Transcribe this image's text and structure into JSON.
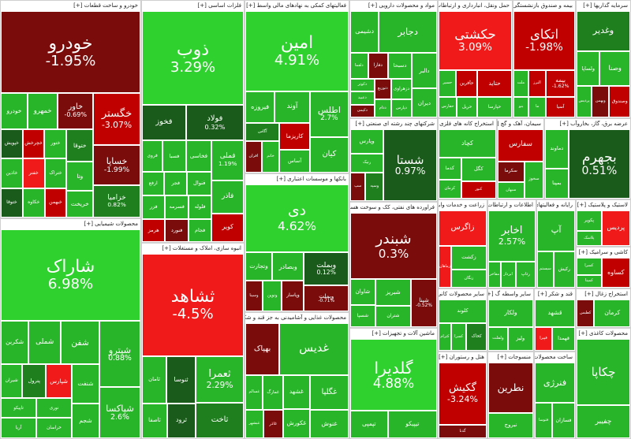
{
  "colors": {
    "strong_up": "#2fd12f",
    "up": "#29b529",
    "mild_up": "#1f7f1f",
    "neutral": "#1a5a1a",
    "mild_down": "#7a0c0c",
    "down": "#c00000",
    "strong_down": "#f11a1a",
    "light_green": "#4ce44c"
  },
  "sections": [
    {
      "id": "auto",
      "title": "خودرو و ساخت قطعات [+]",
      "tiles": [
        {
          "n": "خودرو",
          "p": "-1.95%",
          "c": "mild_down"
        },
        {
          "n": "خگستر",
          "p": "-3.07%",
          "c": "down"
        },
        {
          "n": "خساپا",
          "p": "-1.99%",
          "c": "mild_down"
        },
        {
          "n": "خزامیا",
          "p": "0.82%",
          "c": "mild_up"
        },
        {
          "n": "خاور",
          "p": "-0.69%",
          "c": "mild_down"
        },
        {
          "n": "خمهرو",
          "p": "",
          "c": "up"
        },
        {
          "n": "خودرو",
          "p": "",
          "c": "up"
        },
        {
          "n": "ختوقا",
          "p": "",
          "c": "mild_up"
        },
        {
          "n": "وتا",
          "p": "",
          "c": "up"
        },
        {
          "n": "خریخت",
          "p": "",
          "c": "up"
        },
        {
          "n": "ختور",
          "p": "",
          "c": "up"
        },
        {
          "n": "خچرخش",
          "p": "",
          "c": "down"
        },
        {
          "n": "خپویش",
          "p": "",
          "c": "neutral"
        },
        {
          "n": "ختراک",
          "p": "",
          "c": "up"
        },
        {
          "n": "خبهمن",
          "p": "",
          "c": "down"
        },
        {
          "n": "خفنر",
          "p": "",
          "c": "strong_down"
        },
        {
          "n": "خاذین",
          "p": "",
          "c": "up"
        },
        {
          "n": "خکاوه",
          "p": "",
          "c": "up"
        },
        {
          "n": "ختوقا",
          "p": "",
          "c": "neutral"
        }
      ]
    },
    {
      "id": "metal",
      "title": "فلزات اساسی [+]",
      "tiles": [
        {
          "n": "ذوب",
          "p": "3.29%",
          "c": "strong_up"
        },
        {
          "n": "فولاد",
          "p": "0.32%",
          "c": "neutral"
        },
        {
          "n": "فخوز",
          "p": "",
          "c": "neutral"
        },
        {
          "n": "فملی",
          "p": "1.19%",
          "c": "up"
        },
        {
          "n": "فاذر",
          "p": "",
          "c": "up"
        },
        {
          "n": "کویر",
          "p": "",
          "c": "down"
        },
        {
          "n": "فخاسی",
          "p": "",
          "c": "up"
        },
        {
          "n": "فسبا",
          "p": "",
          "c": "up"
        },
        {
          "n": "فروی",
          "p": "",
          "c": "up"
        },
        {
          "n": "فنوال",
          "p": "",
          "c": "up"
        },
        {
          "n": "فجر",
          "p": "",
          "c": "up"
        },
        {
          "n": "ارفع",
          "p": "",
          "c": "up"
        },
        {
          "n": "فلوله",
          "p": "",
          "c": "up"
        },
        {
          "n": "فجام",
          "p": "",
          "c": "up"
        },
        {
          "n": "فسرمه",
          "p": "",
          "c": "up"
        },
        {
          "n": "فنورد",
          "p": "",
          "c": "mild_down"
        },
        {
          "n": "فزر",
          "p": "",
          "c": "up"
        },
        {
          "n": "هرمز",
          "p": "",
          "c": "down"
        }
      ]
    },
    {
      "id": "finance",
      "title": "فعالیتهای کمکی به نهادهای مالی واسط [+]",
      "tiles": [
        {
          "n": "امین",
          "p": "4.91%",
          "c": "strong_up"
        },
        {
          "n": "اطلس",
          "p": "2.7%",
          "c": "up"
        },
        {
          "n": "کیان",
          "p": "",
          "c": "up"
        },
        {
          "n": "آوند",
          "p": "",
          "c": "up"
        },
        {
          "n": "فیروزه",
          "p": "",
          "c": "up"
        },
        {
          "n": "کاریزما",
          "p": "",
          "c": "down"
        },
        {
          "n": "آساس",
          "p": "",
          "c": "up"
        },
        {
          "n": "آگاس",
          "p": "",
          "c": "mild_up"
        },
        {
          "n": "خاتم",
          "p": "",
          "c": "up"
        },
        {
          "n": "افران",
          "p": "",
          "c": "mild_down"
        }
      ]
    },
    {
      "id": "pharma",
      "title": "مواد و محصولات دارویی [+]",
      "tiles": [
        {
          "n": "دجابر",
          "p": "",
          "c": "up"
        },
        {
          "n": "دشیمی",
          "p": "",
          "c": "up"
        },
        {
          "n": "دالبر",
          "p": "",
          "c": "up"
        },
        {
          "n": "دیران",
          "p": "",
          "c": "up"
        },
        {
          "n": "دسبحا",
          "p": "",
          "c": "up"
        },
        {
          "n": "دفارا",
          "p": "",
          "c": "mild_down"
        },
        {
          "n": "دلقما",
          "p": "",
          "c": "up"
        },
        {
          "n": "دزهراوی",
          "p": "",
          "c": "up"
        },
        {
          "n": "دپارس",
          "p": "",
          "c": "up"
        },
        {
          "n": "دتوزیع",
          "p": "",
          "c": "mild_down"
        },
        {
          "n": "ددام",
          "p": "",
          "c": "up"
        },
        {
          "n": "دکوثر",
          "p": "",
          "c": "up"
        },
        {
          "n": "دعبید",
          "p": "",
          "c": "up"
        },
        {
          "n": "دکیمی",
          "p": "",
          "c": "mild_down"
        }
      ]
    },
    {
      "id": "telecom",
      "title": "حمل ونقل، انبارداری و ارتباطات [+]",
      "tiles": [
        {
          "n": "حکشتی",
          "p": "3.09%",
          "c": "strong_down"
        },
        {
          "n": "حتاید",
          "p": "",
          "c": "down"
        },
        {
          "n": "حپارسا",
          "p": "",
          "c": "up"
        },
        {
          "n": "حآفرین",
          "p": "",
          "c": "down"
        },
        {
          "n": "حسیر",
          "p": "",
          "c": "up"
        },
        {
          "n": "حریل",
          "p": "",
          "c": "up"
        },
        {
          "n": "حفارس",
          "p": "",
          "c": "up"
        }
      ]
    },
    {
      "id": "banks_a",
      "title": "بیمه و صندوق بازنشستگی به جز [+]",
      "tiles": [
        {
          "n": "اتکای",
          "p": "-1.98%",
          "c": "down"
        },
        {
          "n": "بیمه",
          "p": "-1.62%",
          "c": "down"
        },
        {
          "n": "آسیا",
          "p": "",
          "c": "down"
        },
        {
          "n": "البرز",
          "p": "",
          "c": "down"
        },
        {
          "n": "ملت",
          "p": "",
          "c": "up"
        },
        {
          "n": "ما",
          "p": "",
          "c": "up"
        },
        {
          "n": "بنو",
          "p": "",
          "c": "up"
        }
      ]
    },
    {
      "id": "invest",
      "title": "سرمایه گذاریها [+]",
      "tiles": [
        {
          "n": "وغدیر",
          "p": "",
          "c": "mild_up"
        },
        {
          "n": "وصنا",
          "p": "",
          "c": "up"
        },
        {
          "n": "ولساپا",
          "p": "",
          "c": "up"
        },
        {
          "n": "وصندوق",
          "p": "",
          "c": "down"
        },
        {
          "n": "وبهمن",
          "p": "",
          "c": "mild_down"
        },
        {
          "n": "پردیس",
          "p": "",
          "c": "up"
        }
      ]
    },
    {
      "id": "food",
      "title": "محصولات شیمیایی [+]",
      "tiles": [
        {
          "n": "شاراک",
          "p": "6.98%",
          "c": "strong_up"
        },
        {
          "n": "شپترو",
          "p": "0.88%",
          "c": "up"
        },
        {
          "n": "شپاکسا",
          "p": "2.6%",
          "c": "up"
        },
        {
          "n": "شفن",
          "p": "",
          "c": "up"
        },
        {
          "n": "شملی",
          "p": "",
          "c": "up"
        },
        {
          "n": "شکربن",
          "p": "",
          "c": "up"
        },
        {
          "n": "شنفت",
          "p": "",
          "c": "up"
        },
        {
          "n": "شجم",
          "p": "",
          "c": "up"
        },
        {
          "n": "شپارس",
          "p": "",
          "c": "strong_down"
        },
        {
          "n": "پترول",
          "p": "",
          "c": "mild_up"
        },
        {
          "n": "شیران",
          "p": "",
          "c": "up"
        },
        {
          "n": "نوری",
          "p": "",
          "c": "up"
        },
        {
          "n": "خراسان",
          "p": "",
          "c": "up"
        },
        {
          "n": "تاپیکو",
          "p": "",
          "c": "up"
        },
        {
          "n": "آریا",
          "p": "",
          "c": "up"
        }
      ]
    },
    {
      "id": "shahed",
      "title": "انبوه سازی، املاک و مستغلات [+]",
      "tiles": [
        {
          "n": "ثشاهد",
          "p": "-4.5%",
          "c": "strong_down"
        },
        {
          "n": "ثعمرا",
          "p": "2.29%",
          "c": "up"
        },
        {
          "n": "ثاخت",
          "p": "",
          "c": "mild_up"
        },
        {
          "n": "ثنوسا",
          "p": "",
          "c": "neutral"
        },
        {
          "n": "ثامان",
          "p": "",
          "c": "up"
        },
        {
          "n": "ثرود",
          "p": "",
          "c": "neutral"
        },
        {
          "n": "ثاصفا",
          "p": "",
          "c": "up"
        }
      ]
    },
    {
      "id": "banks",
      "title": "بانکها و موسسات اعتباری [+]",
      "tiles": [
        {
          "n": "دی",
          "p": "4.62%",
          "c": "strong_up"
        },
        {
          "n": "وبملت",
          "p": "0.12%",
          "c": "neutral"
        },
        {
          "n": "وبملت",
          "p": "-0.71%",
          "c": "mild_down"
        },
        {
          "n": "وبصادر",
          "p": "",
          "c": "up"
        },
        {
          "n": "وتجارت",
          "p": "",
          "c": "up"
        },
        {
          "n": "وپاسار",
          "p": "",
          "c": "mild_down"
        },
        {
          "n": "ونوین",
          "p": "",
          "c": "up"
        },
        {
          "n": "وسینا",
          "p": "",
          "c": "mild_down"
        }
      ]
    },
    {
      "id": "multi",
      "title": "شرکتهای چند رشته ای صنعتی [+]",
      "tiles": [
        {
          "n": "شستا",
          "p": "0.97%",
          "c": "neutral"
        },
        {
          "n": "وپارس",
          "p": "",
          "c": "up"
        },
        {
          "n": "رنیک",
          "p": "",
          "c": "up"
        },
        {
          "n": "وسپه",
          "p": "",
          "c": "mild_up"
        },
        {
          "n": "سپ",
          "p": "",
          "c": "mild_down"
        }
      ]
    },
    {
      "id": "petro",
      "title": "فراورده های نفتی، کک و سوخت هسته ای [+]",
      "tiles": [
        {
          "n": "شبندر",
          "p": "0.3%",
          "c": "mild_down"
        },
        {
          "n": "شپنا",
          "p": "-0.52%",
          "c": "mild_down"
        },
        {
          "n": "شبریز",
          "p": "",
          "c": "up"
        },
        {
          "n": "شتران",
          "p": "",
          "c": "up"
        },
        {
          "n": "شاوان",
          "p": "",
          "c": "up"
        },
        {
          "n": "شسپا",
          "p": "",
          "c": "up"
        }
      ]
    },
    {
      "id": "sugar",
      "title": "محصولات غذایی و آشامیدنی به جز قند و شکر [+]",
      "tiles": [
        {
          "n": "غدیس",
          "p": "",
          "c": "up"
        },
        {
          "n": "بهپاک",
          "p": "",
          "c": "mild_down"
        },
        {
          "n": "غگلپا",
          "p": "",
          "c": "up"
        },
        {
          "n": "غنوش",
          "p": "",
          "c": "up"
        },
        {
          "n": "غشهد",
          "p": "",
          "c": "up"
        },
        {
          "n": "غکورش",
          "p": "",
          "c": "up"
        },
        {
          "n": "غمارگ",
          "p": "",
          "c": "up"
        },
        {
          "n": "غسالم",
          "p": "",
          "c": "up"
        },
        {
          "n": "غاذر",
          "p": "",
          "c": "mild_down"
        },
        {
          "n": "غبشهر",
          "p": "",
          "c": "up"
        }
      ]
    },
    {
      "id": "machinery",
      "title": "ماشین آلات و تجهیزات [+]",
      "tiles": [
        {
          "n": "گلدیرا",
          "p": "4.88%",
          "c": "strong_up"
        },
        {
          "n": "تیپیکو",
          "p": "",
          "c": "up"
        },
        {
          "n": "تپمپی",
          "p": "",
          "c": "up"
        }
      ]
    },
    {
      "id": "cement",
      "title": "استخراج کانه های فلزی [+]",
      "tiles": [
        {
          "n": "کچاد",
          "p": "",
          "c": "up"
        },
        {
          "n": "کگل",
          "p": "",
          "c": "up"
        },
        {
          "n": "کنور",
          "p": "",
          "c": "down"
        },
        {
          "n": "کدما",
          "p": "",
          "c": "up"
        },
        {
          "n": "کرمان",
          "p": "",
          "c": "up"
        }
      ]
    },
    {
      "id": "lime",
      "title": "سیمان، آهک و گچ [+]",
      "tiles": [
        {
          "n": "سفارس",
          "p": "",
          "c": "down"
        },
        {
          "n": "سخوز",
          "p": "",
          "c": "up"
        },
        {
          "n": "سکرما",
          "p": "",
          "c": "mild_down"
        },
        {
          "n": "سبهان",
          "p": "",
          "c": "up"
        }
      ]
    },
    {
      "id": "power",
      "title": "عرضه برق، گاز، بخاروآب [+]",
      "tiles": [
        {
          "n": "بجهرم",
          "p": "0.51%",
          "c": "neutral"
        },
        {
          "n": "دماوند",
          "p": "",
          "c": "up"
        },
        {
          "n": "بمپنا",
          "p": "",
          "c": "up"
        }
      ]
    },
    {
      "id": "engineering",
      "title": "زراعت و خدمات وابسته [+]",
      "tiles": [
        {
          "n": "زاگرس",
          "p": "",
          "c": "strong_down"
        },
        {
          "n": "زکشت",
          "p": "",
          "c": "up"
        },
        {
          "n": "زنگان",
          "p": "",
          "c": "up"
        },
        {
          "n": "زماهان",
          "p": "",
          "c": "strong_down"
        }
      ]
    },
    {
      "id": "it",
      "title": "اطلاعات و ارتباطات [+]",
      "tiles": [
        {
          "n": "اخابر",
          "p": "2.57%",
          "c": "up"
        },
        {
          "n": "رتاپ",
          "p": "",
          "c": "up"
        },
        {
          "n": "ابرداز",
          "p": "",
          "c": "up"
        },
        {
          "n": "مفاخر",
          "p": "",
          "c": "up"
        }
      ]
    },
    {
      "id": "tech",
      "title": "رایانه و فعالیتهای [+]",
      "tiles": [
        {
          "n": "آپ",
          "p": "",
          "c": "up"
        },
        {
          "n": "رکیش",
          "p": "",
          "c": "up"
        },
        {
          "n": "سیستم",
          "p": "",
          "c": "up"
        }
      ]
    },
    {
      "id": "tile",
      "title": "کاشی و سرامیک [+]",
      "tiles": [
        {
          "n": "کساوه",
          "p": "",
          "c": "down"
        },
        {
          "n": "کسرا",
          "p": "",
          "c": "up"
        },
        {
          "n": "کمینا",
          "p": "",
          "c": "up"
        }
      ]
    },
    {
      "id": "rubber",
      "title": "لاستیک و پلاستیک [+]",
      "tiles": [
        {
          "n": "پردیس",
          "p": "",
          "c": "strong_down"
        },
        {
          "n": "پکویر",
          "p": "",
          "c": "up"
        },
        {
          "n": "پلاسک",
          "p": "",
          "c": "up"
        }
      ]
    },
    {
      "id": "other_trade",
      "title": "سایر محصولات کانی غیر [+]",
      "tiles": [
        {
          "n": "کلوند",
          "p": "",
          "c": "up"
        },
        {
          "n": "کخاک",
          "p": "",
          "c": "mild_up"
        },
        {
          "n": "کسرا",
          "p": "",
          "c": "up"
        },
        {
          "n": "کترام",
          "p": "",
          "c": "up"
        }
      ]
    },
    {
      "id": "leasing",
      "title": "سایر واسطه گ [+]",
      "tiles": [
        {
          "n": "ولکار",
          "p": "",
          "c": "up"
        },
        {
          "n": "ولیز",
          "p": "",
          "c": "up"
        },
        {
          "n": "ولملت",
          "p": "",
          "c": "up"
        }
      ]
    },
    {
      "id": "sugar2",
      "title": "قند و شکر [+]",
      "tiles": [
        {
          "n": "قشهد",
          "p": "",
          "c": "up"
        },
        {
          "n": "قهمدا",
          "p": "",
          "c": "up"
        },
        {
          "n": "قپیرا",
          "p": "",
          "c": "strong_down"
        }
      ]
    },
    {
      "id": "wood",
      "title": "استخراج زغال [+]",
      "tiles": [
        {
          "n": "کرمان",
          "p": "",
          "c": "up"
        },
        {
          "n": "کطبس",
          "p": "",
          "c": "mild_down"
        }
      ]
    },
    {
      "id": "retail",
      "title": "هتل و رستوران [+]",
      "tiles": [
        {
          "n": "گکیش",
          "p": "-3.24%",
          "c": "down"
        },
        {
          "n": "گدنا",
          "p": "",
          "c": "mild_down"
        }
      ]
    },
    {
      "id": "textile",
      "title": "منسوجات [+]",
      "tiles": [
        {
          "n": "نطرین",
          "p": "",
          "c": "mild_down"
        },
        {
          "n": "نبروج",
          "p": "",
          "c": "up"
        }
      ]
    },
    {
      "id": "metals2",
      "title": "ساخت محصولات فلزی [+]",
      "tiles": [
        {
          "n": "فنرژی",
          "p": "",
          "c": "up"
        },
        {
          "n": "فسازان",
          "p": "",
          "c": "up"
        },
        {
          "n": "فتوسا",
          "p": "",
          "c": "up"
        }
      ]
    },
    {
      "id": "paper",
      "title": "محصولات کاغذی [+]",
      "tiles": [
        {
          "n": "چکاپا",
          "p": "",
          "c": "up"
        },
        {
          "n": "چفیبر",
          "p": "",
          "c": "up"
        }
      ]
    }
  ]
}
